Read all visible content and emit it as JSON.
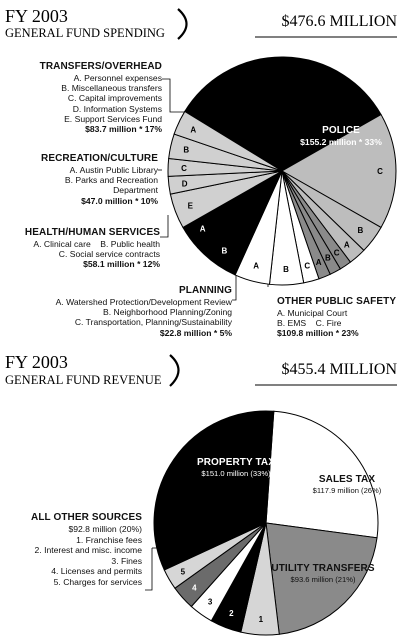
{
  "chart_data": [
    {
      "type": "pie",
      "title": "FY 2003",
      "subtitle": "GENERAL FUND SPENDING",
      "total": "$476.6 MILLION",
      "slices": [
        {
          "group": "Police",
          "label": "",
          "value": 33,
          "color": "#000000"
        },
        {
          "group": "Other Public Safety",
          "label": "C",
          "value": 16.5,
          "color": "#bdbdbd"
        },
        {
          "group": "Other Public Safety",
          "label": "B",
          "value": 4.0,
          "color": "#bdbdbd"
        },
        {
          "group": "Other Public Safety",
          "label": "A",
          "value": 2.5,
          "color": "#bdbdbd"
        },
        {
          "group": "Planning",
          "label": "C",
          "value": 1.7,
          "color": "#8a8a8a"
        },
        {
          "group": "Planning",
          "label": "B",
          "value": 1.6,
          "color": "#8a8a8a"
        },
        {
          "group": "Planning",
          "label": "A",
          "value": 1.7,
          "color": "#8a8a8a"
        },
        {
          "group": "Health/Human Services",
          "label": "C",
          "value": 2.2,
          "color": "#ffffff"
        },
        {
          "group": "Health/Human Services",
          "label": "B",
          "value": 4.8,
          "color": "#ffffff"
        },
        {
          "group": "Health/Human Services",
          "label": "A",
          "value": 5.0,
          "color": "#ffffff"
        },
        {
          "group": "Recreation/Culture",
          "label": "B",
          "value": 6.5,
          "color": "#000000"
        },
        {
          "group": "Recreation/Culture",
          "label": "A",
          "value": 3.5,
          "color": "#000000"
        },
        {
          "group": "Transfers/Overhead",
          "label": "E",
          "value": 5.0,
          "color": "#d0d0d0"
        },
        {
          "group": "Transfers/Overhead",
          "label": "D",
          "value": 2.5,
          "color": "#d0d0d0"
        },
        {
          "group": "Transfers/Overhead",
          "label": "C",
          "value": 2.5,
          "color": "#d0d0d0"
        },
        {
          "group": "Transfers/Overhead",
          "label": "B",
          "value": 3.5,
          "color": "#d0d0d0"
        },
        {
          "group": "Transfers/Overhead",
          "label": "A",
          "value": 3.5,
          "color": "#d0d0d0"
        }
      ]
    },
    {
      "type": "pie",
      "title": "FY 2003",
      "subtitle": "GENERAL FUND REVENUE",
      "total": "$455.4 MILLION",
      "slices": [
        {
          "group": "Sales Tax",
          "label": "",
          "value": 26,
          "color": "#ffffff"
        },
        {
          "group": "Utility Transfers",
          "label": "",
          "value": 21,
          "color": "#8a8a8a"
        },
        {
          "group": "All Other Sources",
          "label": "1",
          "value": 5.5,
          "color": "#d6d6d6"
        },
        {
          "group": "All Other Sources",
          "label": "2",
          "value": 4.5,
          "color": "#000000"
        },
        {
          "group": "All Other Sources",
          "label": "3",
          "value": 3.5,
          "color": "#ffffff"
        },
        {
          "group": "All Other Sources",
          "label": "4",
          "value": 3.5,
          "color": "#6b6b6b"
        },
        {
          "group": "All Other Sources",
          "label": "5",
          "value": 3.0,
          "color": "#d6d6d6"
        },
        {
          "group": "Property Tax",
          "label": "",
          "value": 33,
          "color": "#000000"
        }
      ]
    }
  ],
  "spending": {
    "year": "FY 2003",
    "subtitle": "GENERAL FUND SPENDING",
    "total": "$476.6 MILLION",
    "police": {
      "name": "POLICE",
      "value": "$155.2 million * 33%"
    },
    "transfers": {
      "heading": "TRANSFERS/OVERHEAD",
      "items": [
        "A. Personnel expenses",
        "B. Miscellaneous transfers",
        "C. Capital improvements",
        "D. Information Systems",
        "E. Support Services Fund"
      ],
      "value": "$83.7 million * 17%"
    },
    "recreation": {
      "heading": "RECREATION/CULTURE",
      "items": [
        "A. Austin Public Library",
        "B. Parks and Recreation",
        "Department"
      ],
      "value": "$47.0 million * 10%"
    },
    "health": {
      "heading": "HEALTH/HUMAN SERVICES",
      "items": [
        "A. Clinical care    B. Public health",
        "C. Social service contracts"
      ],
      "value": "$58.1 million * 12%"
    },
    "planning": {
      "heading": "PLANNING",
      "items": [
        "A. Watershed Protection/Development Review",
        "B. Neighborhood Planning/Zoning",
        "C. Transportation, Planning/Sustainability"
      ],
      "value": "$22.8 million * 5%"
    },
    "safety": {
      "heading": "OTHER PUBLIC SAFETY",
      "items": [
        "A. Municipal Court",
        "B. EMS    C. Fire"
      ],
      "value": "$109.8 million * 23%"
    }
  },
  "revenue": {
    "year": "FY 2003",
    "subtitle": "GENERAL FUND REVENUE",
    "total": "$455.4 MILLION",
    "property": {
      "name": "PROPERTY TAX",
      "value": "$151.0 million (33%)"
    },
    "sales": {
      "name": "SALES TAX",
      "value": "$117.9 million (26%)"
    },
    "utility": {
      "name": "UTILITY TRANSFERS",
      "value": "$93.6 million (21%)"
    },
    "other": {
      "heading": "ALL OTHER SOURCES",
      "value": "$92.8 million (20%)",
      "items": [
        "1. Franchise fees",
        "2. Interest and misc. income",
        "3. Fines",
        "4. Licenses and permits",
        "5. Charges for services"
      ]
    }
  }
}
